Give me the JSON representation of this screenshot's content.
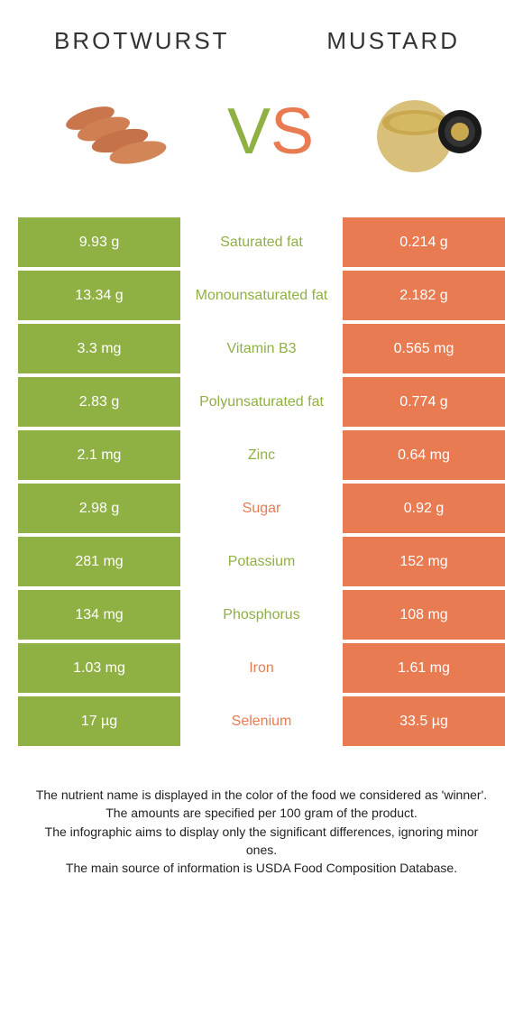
{
  "colors": {
    "green": "#8fb043",
    "orange": "#e87b52",
    "text": "#333333",
    "bg": "#ffffff"
  },
  "titles": {
    "left": "BROTWURST",
    "right": "MUSTARD"
  },
  "vs": {
    "v": "V",
    "s": "S"
  },
  "rows": [
    {
      "left": "9.93 g",
      "label": "Saturated fat",
      "winner": "green",
      "right": "0.214 g"
    },
    {
      "left": "13.34 g",
      "label": "Monounsaturated fat",
      "winner": "green",
      "right": "2.182 g"
    },
    {
      "left": "3.3 mg",
      "label": "Vitamin B3",
      "winner": "green",
      "right": "0.565 mg"
    },
    {
      "left": "2.83 g",
      "label": "Polyunsaturated fat",
      "winner": "green",
      "right": "0.774 g"
    },
    {
      "left": "2.1 mg",
      "label": "Zinc",
      "winner": "green",
      "right": "0.64 mg"
    },
    {
      "left": "2.98 g",
      "label": "Sugar",
      "winner": "orange",
      "right": "0.92 g"
    },
    {
      "left": "281 mg",
      "label": "Potassium",
      "winner": "green",
      "right": "152 mg"
    },
    {
      "left": "134 mg",
      "label": "Phosphorus",
      "winner": "green",
      "right": "108 mg"
    },
    {
      "left": "1.03 mg",
      "label": "Iron",
      "winner": "orange",
      "right": "1.61 mg"
    },
    {
      "left": "17 µg",
      "label": "Selenium",
      "winner": "orange",
      "right": "33.5 µg"
    }
  ],
  "footer": [
    "The nutrient name is displayed in the color of the food we considered as 'winner'.",
    "The amounts are specified per 100 gram of the product.",
    "The infographic aims to display only the significant differences, ignoring minor ones.",
    "The main source of information is USDA Food Composition Database."
  ]
}
